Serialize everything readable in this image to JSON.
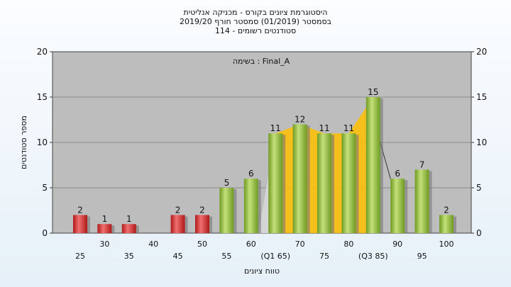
{
  "chart_data": {
    "type": "bar",
    "title_lines": [
      "היסטוגרמת ציונים בקורס - מכניקה אנליטית",
      "בסמסטר  (01/2019)  סמסטר חורף 2019/20",
      "סטודנטים רשומים - 114"
    ],
    "annotation": "בשימה : Final_A",
    "xlabel": "טווח ציונים",
    "ylabel": "מספר סטודנטים",
    "ylim": [
      0,
      20
    ],
    "yticks": [
      0,
      5,
      10,
      15,
      20
    ],
    "grid": true,
    "categories": [
      "25",
      "30",
      "35",
      "40",
      "45",
      "50",
      "55",
      "60",
      "65",
      "70",
      "75",
      "80",
      "85",
      "90",
      "95",
      "100"
    ],
    "category_labels": [
      "25",
      "30",
      "35",
      "40",
      "45",
      "50",
      "55",
      "60",
      "(Q1 65)",
      "70",
      "75",
      "80",
      "(Q3 85)",
      "90",
      "95",
      "100"
    ],
    "values": [
      2,
      1,
      1,
      0,
      2,
      2,
      5,
      6,
      11,
      12,
      11,
      11,
      15,
      6,
      7,
      2
    ],
    "value_labels": [
      "2",
      "1",
      "1",
      "",
      "2",
      "2",
      "5",
      "6",
      "11",
      "12",
      "11",
      "11",
      "15",
      "6",
      "7",
      "2"
    ],
    "bar_colors": [
      "#d42a2a",
      "#d42a2a",
      "#d42a2a",
      "#d42a2a",
      "#d42a2a",
      "#d42a2a",
      "#8fbc3a",
      "#8fbc3a",
      "#8fbc3a",
      "#8fbc3a",
      "#8fbc3a",
      "#8fbc3a",
      "#8fbc3a",
      "#8fbc3a",
      "#8fbc3a",
      "#8fbc3a"
    ],
    "interquartile_band": {
      "from_category": "65",
      "to_category": "85",
      "color": "#ffc000"
    },
    "colors": {
      "plot_bg": "#bdbdbd",
      "fail": "#d42a2a",
      "pass": "#8fbc3a",
      "band": "#ffc000"
    }
  }
}
